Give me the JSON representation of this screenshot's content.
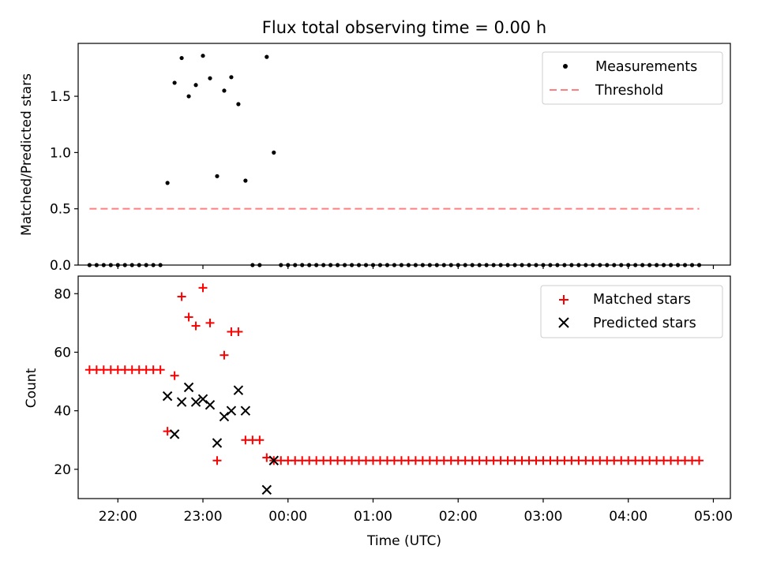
{
  "chart_data": [
    {
      "type": "scatter",
      "title": "Flux total observing time = 0.00 h",
      "ylabel": "Matched/Predicted stars",
      "xlabel": "",
      "xlim": [
        "21:32",
        "05:12"
      ],
      "ylim": [
        0,
        1.97
      ],
      "yticks": [
        0.0,
        0.5,
        1.0,
        1.5
      ],
      "ytick_labels": [
        "0.0",
        "0.5",
        "1.0",
        "1.5"
      ],
      "legend_position": "top-right",
      "colors": {
        "measurements": "#000000",
        "threshold": "#ff7f7f"
      },
      "series": [
        {
          "name": "Measurements",
          "marker": "dot",
          "points": [
            [
              "21:40",
              0
            ],
            [
              "21:45",
              0
            ],
            [
              "21:50",
              0
            ],
            [
              "21:55",
              0
            ],
            [
              "22:00",
              0
            ],
            [
              "22:05",
              0
            ],
            [
              "22:10",
              0
            ],
            [
              "22:15",
              0
            ],
            [
              "22:20",
              0
            ],
            [
              "22:25",
              0
            ],
            [
              "22:30",
              0
            ],
            [
              "22:35",
              0.73
            ],
            [
              "22:40",
              1.62
            ],
            [
              "22:45",
              1.84
            ],
            [
              "22:50",
              1.5
            ],
            [
              "22:55",
              1.6
            ],
            [
              "23:00",
              1.86
            ],
            [
              "23:05",
              1.66
            ],
            [
              "23:10",
              0.79
            ],
            [
              "23:15",
              1.55
            ],
            [
              "23:20",
              1.67
            ],
            [
              "23:25",
              1.43
            ],
            [
              "23:30",
              0.75
            ],
            [
              "23:35",
              0
            ],
            [
              "23:40",
              0
            ],
            [
              "23:45",
              1.85
            ],
            [
              "23:50",
              1.0
            ],
            [
              "23:55",
              0
            ],
            [
              "00:00",
              0
            ],
            [
              "00:05",
              0
            ],
            [
              "00:10",
              0
            ],
            [
              "00:15",
              0
            ],
            [
              "00:20",
              0
            ],
            [
              "00:25",
              0
            ],
            [
              "00:30",
              0
            ],
            [
              "00:35",
              0
            ],
            [
              "00:40",
              0
            ],
            [
              "00:45",
              0
            ],
            [
              "00:50",
              0
            ],
            [
              "00:55",
              0
            ],
            [
              "01:00",
              0
            ],
            [
              "01:05",
              0
            ],
            [
              "01:10",
              0
            ],
            [
              "01:15",
              0
            ],
            [
              "01:20",
              0
            ],
            [
              "01:25",
              0
            ],
            [
              "01:30",
              0
            ],
            [
              "01:35",
              0
            ],
            [
              "01:40",
              0
            ],
            [
              "01:45",
              0
            ],
            [
              "01:50",
              0
            ],
            [
              "01:55",
              0
            ],
            [
              "02:00",
              0
            ],
            [
              "02:05",
              0
            ],
            [
              "02:10",
              0
            ],
            [
              "02:15",
              0
            ],
            [
              "02:20",
              0
            ],
            [
              "02:25",
              0
            ],
            [
              "02:30",
              0
            ],
            [
              "02:35",
              0
            ],
            [
              "02:40",
              0
            ],
            [
              "02:45",
              0
            ],
            [
              "02:50",
              0
            ],
            [
              "02:55",
              0
            ],
            [
              "03:00",
              0
            ],
            [
              "03:05",
              0
            ],
            [
              "03:10",
              0
            ],
            [
              "03:15",
              0
            ],
            [
              "03:20",
              0
            ],
            [
              "03:25",
              0
            ],
            [
              "03:30",
              0
            ],
            [
              "03:35",
              0
            ],
            [
              "03:40",
              0
            ],
            [
              "03:45",
              0
            ],
            [
              "03:50",
              0
            ],
            [
              "03:55",
              0
            ],
            [
              "04:00",
              0
            ],
            [
              "04:05",
              0
            ],
            [
              "04:10",
              0
            ],
            [
              "04:15",
              0
            ],
            [
              "04:20",
              0
            ],
            [
              "04:25",
              0
            ],
            [
              "04:30",
              0
            ],
            [
              "04:35",
              0
            ],
            [
              "04:40",
              0
            ],
            [
              "04:45",
              0
            ],
            [
              "04:50",
              0
            ]
          ]
        },
        {
          "name": "Threshold",
          "style": "dashed-line",
          "points": [
            [
              "21:40",
              0.5
            ],
            [
              "04:50",
              0.5
            ]
          ]
        }
      ]
    },
    {
      "type": "scatter",
      "title": "",
      "ylabel": "Count",
      "xlabel": "Time (UTC)",
      "xlim": [
        "21:32",
        "05:12"
      ],
      "ylim": [
        10,
        86
      ],
      "yticks": [
        20,
        40,
        60,
        80
      ],
      "ytick_labels": [
        "20",
        "40",
        "60",
        "80"
      ],
      "xtick_times": [
        "22:00",
        "23:00",
        "00:00",
        "01:00",
        "02:00",
        "03:00",
        "04:00",
        "05:00"
      ],
      "xtick_labels": [
        "22:00",
        "23:00",
        "00:00",
        "01:00",
        "02:00",
        "03:00",
        "04:00",
        "05:00"
      ],
      "legend_position": "top-right",
      "colors": {
        "matched": "#ff0000",
        "predicted": "#000000"
      },
      "series": [
        {
          "name": "Matched stars",
          "marker": "plus",
          "points": [
            [
              "21:40",
              54
            ],
            [
              "21:45",
              54
            ],
            [
              "21:50",
              54
            ],
            [
              "21:55",
              54
            ],
            [
              "22:00",
              54
            ],
            [
              "22:05",
              54
            ],
            [
              "22:10",
              54
            ],
            [
              "22:15",
              54
            ],
            [
              "22:20",
              54
            ],
            [
              "22:25",
              54
            ],
            [
              "22:30",
              54
            ],
            [
              "22:35",
              33
            ],
            [
              "22:40",
              52
            ],
            [
              "22:45",
              79
            ],
            [
              "22:50",
              72
            ],
            [
              "22:55",
              69
            ],
            [
              "23:00",
              82
            ],
            [
              "23:05",
              70
            ],
            [
              "23:10",
              23
            ],
            [
              "23:15",
              59
            ],
            [
              "23:20",
              67
            ],
            [
              "23:25",
              67
            ],
            [
              "23:30",
              30
            ],
            [
              "23:35",
              30
            ],
            [
              "23:40",
              30
            ],
            [
              "23:45",
              24
            ],
            [
              "23:50",
              23
            ],
            [
              "23:55",
              23
            ],
            [
              "00:00",
              23
            ],
            [
              "00:05",
              23
            ],
            [
              "00:10",
              23
            ],
            [
              "00:15",
              23
            ],
            [
              "00:20",
              23
            ],
            [
              "00:25",
              23
            ],
            [
              "00:30",
              23
            ],
            [
              "00:35",
              23
            ],
            [
              "00:40",
              23
            ],
            [
              "00:45",
              23
            ],
            [
              "00:50",
              23
            ],
            [
              "00:55",
              23
            ],
            [
              "01:00",
              23
            ],
            [
              "01:05",
              23
            ],
            [
              "01:10",
              23
            ],
            [
              "01:15",
              23
            ],
            [
              "01:20",
              23
            ],
            [
              "01:25",
              23
            ],
            [
              "01:30",
              23
            ],
            [
              "01:35",
              23
            ],
            [
              "01:40",
              23
            ],
            [
              "01:45",
              23
            ],
            [
              "01:50",
              23
            ],
            [
              "01:55",
              23
            ],
            [
              "02:00",
              23
            ],
            [
              "02:05",
              23
            ],
            [
              "02:10",
              23
            ],
            [
              "02:15",
              23
            ],
            [
              "02:20",
              23
            ],
            [
              "02:25",
              23
            ],
            [
              "02:30",
              23
            ],
            [
              "02:35",
              23
            ],
            [
              "02:40",
              23
            ],
            [
              "02:45",
              23
            ],
            [
              "02:50",
              23
            ],
            [
              "02:55",
              23
            ],
            [
              "03:00",
              23
            ],
            [
              "03:05",
              23
            ],
            [
              "03:10",
              23
            ],
            [
              "03:15",
              23
            ],
            [
              "03:20",
              23
            ],
            [
              "03:25",
              23
            ],
            [
              "03:30",
              23
            ],
            [
              "03:35",
              23
            ],
            [
              "03:40",
              23
            ],
            [
              "03:45",
              23
            ],
            [
              "03:50",
              23
            ],
            [
              "03:55",
              23
            ],
            [
              "04:00",
              23
            ],
            [
              "04:05",
              23
            ],
            [
              "04:10",
              23
            ],
            [
              "04:15",
              23
            ],
            [
              "04:20",
              23
            ],
            [
              "04:25",
              23
            ],
            [
              "04:30",
              23
            ],
            [
              "04:35",
              23
            ],
            [
              "04:40",
              23
            ],
            [
              "04:45",
              23
            ],
            [
              "04:50",
              23
            ]
          ]
        },
        {
          "name": "Predicted stars",
          "marker": "x",
          "points": [
            [
              "22:35",
              45
            ],
            [
              "22:40",
              32
            ],
            [
              "22:45",
              43
            ],
            [
              "22:50",
              48
            ],
            [
              "22:55",
              43
            ],
            [
              "23:00",
              44
            ],
            [
              "23:05",
              42
            ],
            [
              "23:10",
              29
            ],
            [
              "23:15",
              38
            ],
            [
              "23:20",
              40
            ],
            [
              "23:25",
              47
            ],
            [
              "23:30",
              40
            ],
            [
              "23:45",
              13
            ],
            [
              "23:50",
              23
            ]
          ]
        }
      ]
    }
  ]
}
